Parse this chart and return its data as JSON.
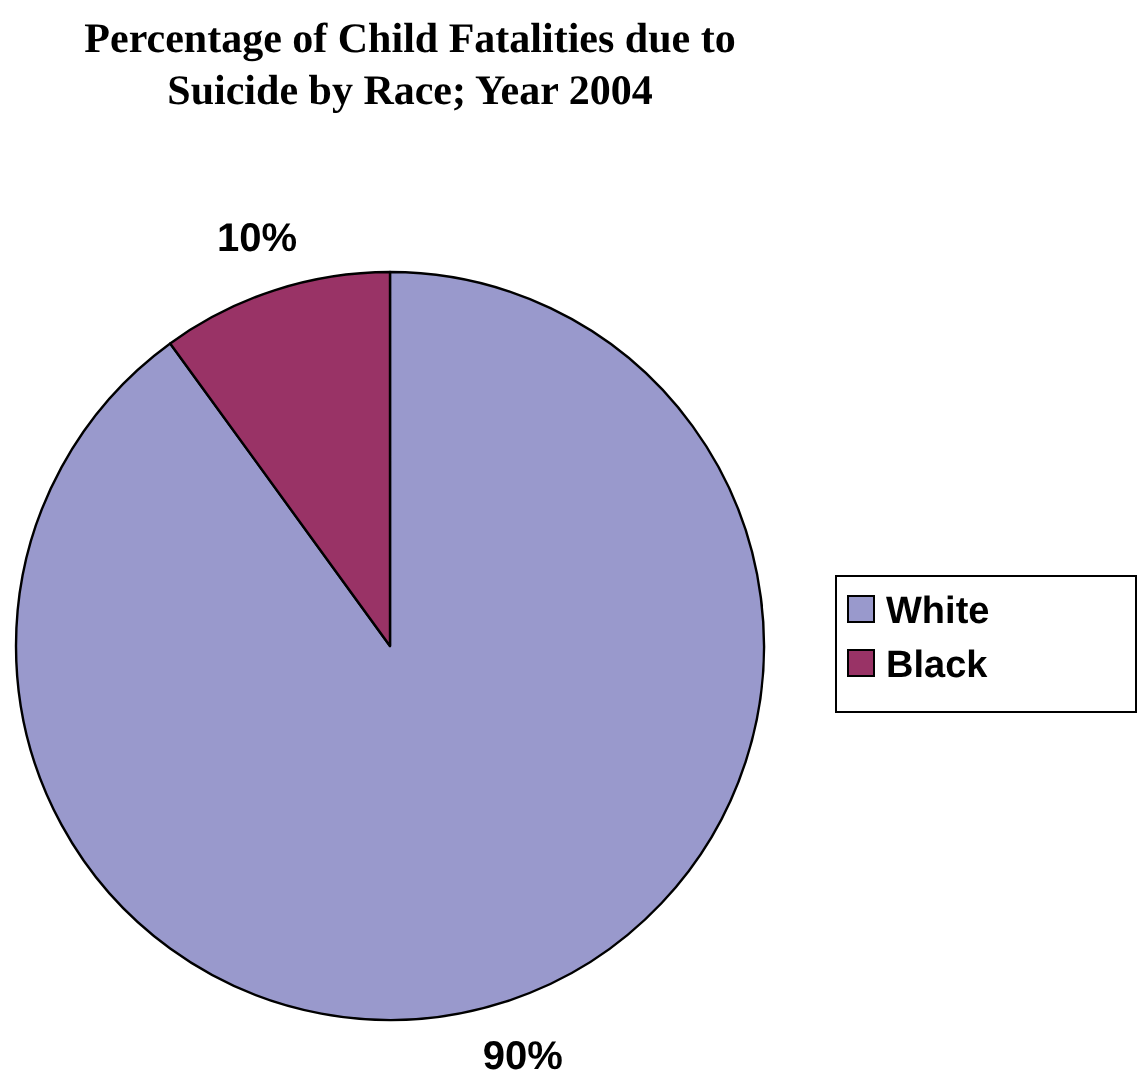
{
  "chart_data": {
    "type": "pie",
    "title": "Percentage of Child Fatalities due to Suicide by Race; Year 2004",
    "categories": [
      "White",
      "Black"
    ],
    "values": [
      90,
      10
    ],
    "colors": [
      "#9999cc",
      "#993366"
    ],
    "value_labels": [
      "90%",
      "10%"
    ],
    "legend": "right"
  }
}
